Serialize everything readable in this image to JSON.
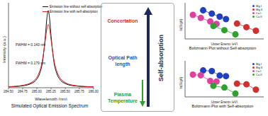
{
  "chart_data": [
    {
      "type": "line",
      "title": "Simulated Optical Emission Spectrum",
      "x_label": "Wavelength (nm)",
      "y_label": "Intensity (a.u.)",
      "x": [
        284.5,
        284.75,
        284.9,
        285.0,
        285.05,
        285.1,
        285.15,
        285.175,
        285.2,
        285.225,
        285.25,
        285.3,
        285.35,
        285.4,
        285.5,
        285.65,
        285.9,
        286.0
      ],
      "series": [
        {
          "name": "Emission line without self-absorption",
          "color": "#111111",
          "values": [
            0.01,
            0.025,
            0.054,
            0.113,
            0.185,
            0.338,
            0.672,
            0.891,
            1.0,
            0.891,
            0.672,
            0.338,
            0.185,
            0.113,
            0.054,
            0.025,
            0.012,
            0.01
          ]
        },
        {
          "name": "Emission line with self-absorption",
          "color": "#e02020",
          "values": [
            0.013,
            0.031,
            0.067,
            0.137,
            0.216,
            0.365,
            0.625,
            0.761,
            0.82,
            0.761,
            0.625,
            0.365,
            0.216,
            0.137,
            0.067,
            0.031,
            0.015,
            0.013
          ]
        }
      ],
      "xlim": [
        284.5,
        286.0
      ],
      "xticks": [
        {
          "value": 284.5,
          "label": "284.50"
        },
        {
          "value": 284.75,
          "label": "284.75"
        },
        {
          "value": 285.0,
          "label": "285.00"
        },
        {
          "value": 285.25,
          "label": "285.25"
        },
        {
          "value": 285.5,
          "label": "285.50"
        },
        {
          "value": 285.75,
          "label": "285.75"
        },
        {
          "value": 286.0,
          "label": "286.00"
        }
      ],
      "ylim": [
        0,
        1.1
      ],
      "tick_labels": "x",
      "legend": "upper right",
      "annotations": [
        "FWHM = 0.143 nm",
        "FWHM = 0.179 nm"
      ]
    },
    {
      "type": "scatter",
      "title": "Boltzmann Plot without Self-absorption",
      "x_label": "Upper Energy (eV)",
      "y_label": "ln(Iλ/gA)",
      "xlim": [
        2,
        12
      ],
      "ylim": [
        -10,
        2
      ],
      "tick_labels": false,
      "legend": "upper right",
      "marker": "circle",
      "series": [
        {
          "name": "Mg I",
          "color": "#2040c0",
          "x": [
            4.3,
            5.4,
            6.4,
            7.2
          ],
          "y": [
            -0.5,
            -1.6,
            -2.6,
            -3.4
          ]
        },
        {
          "name": "Mg II",
          "color": "#d03030",
          "x": [
            8.6,
            9.8,
            11.0
          ],
          "y": [
            -4.9,
            -6.1,
            -7.3
          ]
        },
        {
          "name": "Ca I",
          "color": "#e040a0",
          "x": [
            3.0,
            4.0,
            5.2,
            6.0
          ],
          "y": [
            -2.0,
            -3.0,
            -4.2,
            -5.0
          ]
        },
        {
          "name": "Ca II",
          "color": "#30a030",
          "x": [
            5.6,
            7.0,
            8.4
          ],
          "y": [
            -5.7,
            -7.1,
            -8.5
          ]
        }
      ]
    },
    {
      "type": "scatter",
      "title": "Boltzmann Plot with Self-absorption",
      "x_label": "Upper Energy (eV)",
      "y_label": "ln(Iλ/gA)",
      "xlim": [
        2,
        12
      ],
      "ylim": [
        -10,
        2
      ],
      "tick_labels": false,
      "legend": "upper right",
      "marker": "circle",
      "series": [
        {
          "name": "Mg I",
          "color": "#2040c0",
          "x": [
            4.3,
            5.4,
            6.4,
            7.2
          ],
          "y": [
            -1.2,
            -1.4,
            -2.9,
            -3.1
          ]
        },
        {
          "name": "Mg II",
          "color": "#d03030",
          "x": [
            8.6,
            9.8,
            11.0
          ],
          "y": [
            -5.6,
            -5.8,
            -7.6
          ]
        },
        {
          "name": "Ca I",
          "color": "#e040a0",
          "x": [
            3.0,
            4.0,
            5.2,
            6.0
          ],
          "y": [
            -2.6,
            -2.8,
            -4.7,
            -4.9
          ]
        },
        {
          "name": "Ca II",
          "color": "#30a030",
          "x": [
            5.6,
            7.0,
            8.4
          ],
          "y": [
            -6.3,
            -6.9,
            -8.9
          ]
        }
      ]
    }
  ],
  "diagram": {
    "factors": [
      {
        "text": "Concertation",
        "color": "#e02828"
      },
      {
        "text": "Optical Path length",
        "color": "#2454c8"
      },
      {
        "text": "Plasma Temperature",
        "color": "#2ea02e"
      }
    ],
    "label": "Self-absorption"
  }
}
